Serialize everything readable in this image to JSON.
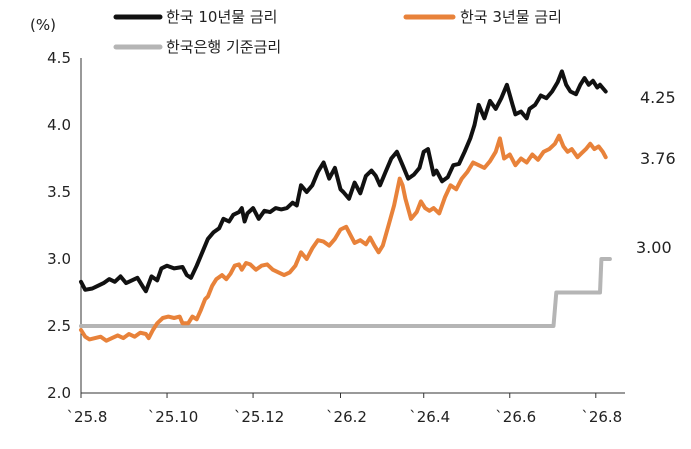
{
  "chart_data": {
    "type": "line",
    "ylabel": "(%)",
    "ylim": [
      2.0,
      4.5
    ],
    "yticks": [
      "2.0",
      "2.5",
      "3.0",
      "3.5",
      "4.0",
      "4.5"
    ],
    "xlim": [
      0,
      385
    ],
    "xticks": [
      {
        "label": "`25.8",
        "x": 0
      },
      {
        "label": "`25.10",
        "x": 61
      },
      {
        "label": "`25.12",
        "x": 122
      },
      {
        "label": "`26.2",
        "x": 184
      },
      {
        "label": "`26.4",
        "x": 243
      },
      {
        "label": "`26.6",
        "x": 304
      },
      {
        "label": "`26.8",
        "x": 365
      }
    ],
    "legend": "top",
    "series": [
      {
        "name": "한국 10년물 금리",
        "color": "#111111",
        "end_label": "4.25",
        "points": [
          [
            0,
            2.83
          ],
          [
            3,
            2.77
          ],
          [
            8,
            2.78
          ],
          [
            12,
            2.8
          ],
          [
            16,
            2.82
          ],
          [
            20,
            2.85
          ],
          [
            24,
            2.83
          ],
          [
            28,
            2.87
          ],
          [
            32,
            2.82
          ],
          [
            36,
            2.84
          ],
          [
            40,
            2.86
          ],
          [
            44,
            2.79
          ],
          [
            46,
            2.76
          ],
          [
            50,
            2.87
          ],
          [
            54,
            2.84
          ],
          [
            57,
            2.93
          ],
          [
            61,
            2.95
          ],
          [
            66,
            2.93
          ],
          [
            72,
            2.94
          ],
          [
            75,
            2.88
          ],
          [
            78,
            2.86
          ],
          [
            82,
            2.95
          ],
          [
            86,
            3.05
          ],
          [
            90,
            3.15
          ],
          [
            94,
            3.2
          ],
          [
            98,
            3.23
          ],
          [
            101,
            3.3
          ],
          [
            105,
            3.28
          ],
          [
            108,
            3.33
          ],
          [
            112,
            3.35
          ],
          [
            114,
            3.38
          ],
          [
            116,
            3.28
          ],
          [
            118,
            3.34
          ],
          [
            122,
            3.38
          ],
          [
            126,
            3.3
          ],
          [
            130,
            3.36
          ],
          [
            134,
            3.35
          ],
          [
            138,
            3.38
          ],
          [
            142,
            3.37
          ],
          [
            146,
            3.38
          ],
          [
            150,
            3.42
          ],
          [
            153,
            3.4
          ],
          [
            156,
            3.55
          ],
          [
            160,
            3.5
          ],
          [
            164,
            3.55
          ],
          [
            168,
            3.65
          ],
          [
            172,
            3.72
          ],
          [
            176,
            3.6
          ],
          [
            180,
            3.68
          ],
          [
            184,
            3.52
          ],
          [
            186,
            3.5
          ],
          [
            190,
            3.45
          ],
          [
            194,
            3.57
          ],
          [
            198,
            3.49
          ],
          [
            202,
            3.62
          ],
          [
            206,
            3.66
          ],
          [
            209,
            3.62
          ],
          [
            212,
            3.55
          ],
          [
            216,
            3.65
          ],
          [
            220,
            3.75
          ],
          [
            224,
            3.8
          ],
          [
            228,
            3.7
          ],
          [
            232,
            3.6
          ],
          [
            236,
            3.63
          ],
          [
            240,
            3.68
          ],
          [
            243,
            3.8
          ],
          [
            246,
            3.82
          ],
          [
            250,
            3.63
          ],
          [
            252,
            3.66
          ],
          [
            256,
            3.58
          ],
          [
            260,
            3.61
          ],
          [
            264,
            3.7
          ],
          [
            268,
            3.71
          ],
          [
            272,
            3.8
          ],
          [
            276,
            3.9
          ],
          [
            279,
            4.0
          ],
          [
            282,
            4.15
          ],
          [
            286,
            4.05
          ],
          [
            290,
            4.18
          ],
          [
            294,
            4.12
          ],
          [
            298,
            4.2
          ],
          [
            302,
            4.3
          ],
          [
            306,
            4.15
          ],
          [
            308,
            4.08
          ],
          [
            312,
            4.1
          ],
          [
            316,
            4.05
          ],
          [
            318,
            4.12
          ],
          [
            322,
            4.15
          ],
          [
            326,
            4.22
          ],
          [
            330,
            4.2
          ],
          [
            334,
            4.25
          ],
          [
            338,
            4.32
          ],
          [
            341,
            4.4
          ],
          [
            344,
            4.3
          ],
          [
            347,
            4.25
          ],
          [
            351,
            4.23
          ],
          [
            354,
            4.3
          ],
          [
            357,
            4.35
          ],
          [
            360,
            4.3
          ],
          [
            363,
            4.33
          ],
          [
            366,
            4.28
          ],
          [
            368,
            4.3
          ],
          [
            372,
            4.25
          ]
        ]
      },
      {
        "name": "한국 3년물 금리",
        "color": "#E8823A",
        "end_label": "3.76",
        "points": [
          [
            0,
            2.47
          ],
          [
            3,
            2.42
          ],
          [
            6,
            2.4
          ],
          [
            10,
            2.41
          ],
          [
            14,
            2.42
          ],
          [
            18,
            2.39
          ],
          [
            22,
            2.41
          ],
          [
            26,
            2.43
          ],
          [
            30,
            2.41
          ],
          [
            34,
            2.44
          ],
          [
            38,
            2.42
          ],
          [
            42,
            2.45
          ],
          [
            46,
            2.44
          ],
          [
            48,
            2.41
          ],
          [
            51,
            2.47
          ],
          [
            54,
            2.52
          ],
          [
            58,
            2.56
          ],
          [
            62,
            2.57
          ],
          [
            66,
            2.56
          ],
          [
            70,
            2.57
          ],
          [
            72,
            2.52
          ],
          [
            76,
            2.52
          ],
          [
            79,
            2.57
          ],
          [
            82,
            2.55
          ],
          [
            85,
            2.62
          ],
          [
            88,
            2.7
          ],
          [
            90,
            2.72
          ],
          [
            93,
            2.8
          ],
          [
            96,
            2.85
          ],
          [
            100,
            2.88
          ],
          [
            103,
            2.85
          ],
          [
            106,
            2.89
          ],
          [
            109,
            2.95
          ],
          [
            112,
            2.96
          ],
          [
            114,
            2.92
          ],
          [
            117,
            2.97
          ],
          [
            120,
            2.96
          ],
          [
            124,
            2.92
          ],
          [
            128,
            2.95
          ],
          [
            132,
            2.96
          ],
          [
            136,
            2.92
          ],
          [
            140,
            2.9
          ],
          [
            144,
            2.88
          ],
          [
            148,
            2.9
          ],
          [
            152,
            2.95
          ],
          [
            156,
            3.05
          ],
          [
            160,
            3.0
          ],
          [
            164,
            3.08
          ],
          [
            168,
            3.14
          ],
          [
            172,
            3.13
          ],
          [
            176,
            3.1
          ],
          [
            180,
            3.15
          ],
          [
            184,
            3.22
          ],
          [
            188,
            3.24
          ],
          [
            191,
            3.18
          ],
          [
            194,
            3.12
          ],
          [
            198,
            3.14
          ],
          [
            202,
            3.11
          ],
          [
            205,
            3.16
          ],
          [
            208,
            3.1
          ],
          [
            211,
            3.05
          ],
          [
            214,
            3.1
          ],
          [
            218,
            3.25
          ],
          [
            222,
            3.4
          ],
          [
            226,
            3.6
          ],
          [
            228,
            3.55
          ],
          [
            230,
            3.45
          ],
          [
            234,
            3.3
          ],
          [
            238,
            3.35
          ],
          [
            241,
            3.43
          ],
          [
            244,
            3.38
          ],
          [
            247,
            3.36
          ],
          [
            250,
            3.38
          ],
          [
            254,
            3.34
          ],
          [
            258,
            3.46
          ],
          [
            262,
            3.55
          ],
          [
            266,
            3.52
          ],
          [
            270,
            3.6
          ],
          [
            274,
            3.65
          ],
          [
            278,
            3.72
          ],
          [
            282,
            3.7
          ],
          [
            286,
            3.68
          ],
          [
            290,
            3.73
          ],
          [
            294,
            3.8
          ],
          [
            297,
            3.9
          ],
          [
            300,
            3.75
          ],
          [
            304,
            3.78
          ],
          [
            308,
            3.7
          ],
          [
            312,
            3.75
          ],
          [
            316,
            3.72
          ],
          [
            320,
            3.78
          ],
          [
            324,
            3.74
          ],
          [
            328,
            3.8
          ],
          [
            332,
            3.82
          ],
          [
            336,
            3.86
          ],
          [
            339,
            3.92
          ],
          [
            342,
            3.84
          ],
          [
            345,
            3.8
          ],
          [
            348,
            3.82
          ],
          [
            352,
            3.76
          ],
          [
            355,
            3.79
          ],
          [
            358,
            3.82
          ],
          [
            361,
            3.86
          ],
          [
            364,
            3.82
          ],
          [
            367,
            3.84
          ],
          [
            370,
            3.8
          ],
          [
            372,
            3.76
          ]
        ]
      },
      {
        "name": "한국은행 기준금리",
        "color": "#B5B5B5",
        "end_label": "3.00",
        "points": [
          [
            0,
            2.5
          ],
          [
            51,
            2.5
          ],
          [
            335,
            2.5
          ],
          [
            337,
            2.75
          ],
          [
            368,
            2.75
          ],
          [
            369,
            3.0
          ],
          [
            375,
            3.0
          ]
        ]
      }
    ]
  }
}
